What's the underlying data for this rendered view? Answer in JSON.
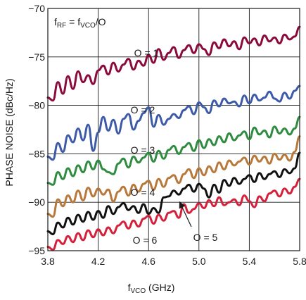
{
  "chart_data": {
    "type": "line",
    "title": "",
    "xlabel": {
      "main": "f",
      "sub": "VCO",
      "tail": " (GHz)"
    },
    "ylabel": "PHASE NOISE (dBc/Hz)",
    "xlim": [
      3.8,
      5.8
    ],
    "ylim": [
      -95,
      -70
    ],
    "x_ticks": [
      "3.8",
      "4.2",
      "4.6",
      "5.0",
      "5.4",
      "5.8"
    ],
    "y_ticks": [
      "−95",
      "−90",
      "−85",
      "−80",
      "−75",
      "−70"
    ],
    "x_tick_values": [
      3.8,
      4.2,
      4.6,
      5.0,
      5.4,
      5.8
    ],
    "y_tick_values": [
      -95,
      -90,
      -85,
      -80,
      -75,
      -70
    ],
    "grid": true,
    "formula": {
      "p1": "f",
      "s1": "RF",
      "p2": " = f",
      "s2": "VCO",
      "p3": "/O"
    },
    "series": [
      {
        "name": "O = 1",
        "label": "O = 1",
        "color": "#8b0a3c",
        "x": [
          3.8,
          3.84,
          3.88,
          3.92,
          3.96,
          4.0,
          4.04,
          4.08,
          4.12,
          4.16,
          4.2,
          4.24,
          4.28,
          4.32,
          4.36,
          4.4,
          4.44,
          4.48,
          4.52,
          4.56,
          4.6,
          4.64,
          4.68,
          4.72,
          4.76,
          4.8,
          4.84,
          4.88,
          4.92,
          4.96,
          5.0,
          5.04,
          5.08,
          5.12,
          5.16,
          5.2,
          5.24,
          5.28,
          5.32,
          5.36,
          5.4,
          5.44,
          5.48,
          5.52,
          5.56,
          5.6,
          5.64,
          5.68,
          5.72,
          5.76,
          5.8
        ],
        "y": [
          -79.2,
          -79.5,
          -77.6,
          -78.8,
          -77.0,
          -78.3,
          -76.5,
          -77.6,
          -76.9,
          -77.8,
          -76.4,
          -75.9,
          -76.8,
          -75.6,
          -76.5,
          -75.8,
          -75.2,
          -76.3,
          -75.4,
          -75.9,
          -74.8,
          -75.6,
          -74.2,
          -75.3,
          -74.6,
          -74.0,
          -75.1,
          -74.3,
          -73.8,
          -74.6,
          -73.7,
          -74.2,
          -74.8,
          -73.5,
          -74.1,
          -73.2,
          -73.9,
          -73.4,
          -74.2,
          -73.0,
          -73.6,
          -73.1,
          -73.8,
          -72.8,
          -73.4,
          -73.0,
          -73.6,
          -72.7,
          -73.2,
          -72.9,
          -71.9
        ]
      },
      {
        "name": "O = 2",
        "label": "O = 2",
        "color": "#3d5aa8",
        "x": [
          3.8,
          3.84,
          3.88,
          3.92,
          3.96,
          4.0,
          4.04,
          4.08,
          4.12,
          4.16,
          4.2,
          4.24,
          4.28,
          4.32,
          4.36,
          4.4,
          4.44,
          4.48,
          4.52,
          4.56,
          4.6,
          4.64,
          4.68,
          4.72,
          4.76,
          4.8,
          4.84,
          4.88,
          4.92,
          4.96,
          5.0,
          5.04,
          5.08,
          5.12,
          5.16,
          5.2,
          5.24,
          5.28,
          5.32,
          5.36,
          5.4,
          5.44,
          5.48,
          5.52,
          5.56,
          5.6,
          5.64,
          5.68,
          5.72,
          5.76,
          5.8
        ],
        "y": [
          -85.3,
          -85.6,
          -83.9,
          -84.8,
          -83.1,
          -83.8,
          -82.4,
          -83.6,
          -82.0,
          -84.7,
          -82.8,
          -81.2,
          -82.6,
          -81.5,
          -82.9,
          -81.4,
          -80.9,
          -82.5,
          -81.6,
          -80.8,
          -80.2,
          -82.2,
          -81.0,
          -82.0,
          -81.4,
          -80.9,
          -81.3,
          -80.5,
          -80.1,
          -80.9,
          -79.7,
          -80.2,
          -80.8,
          -79.5,
          -80.1,
          -79.3,
          -79.8,
          -79.6,
          -80.1,
          -79.0,
          -79.8,
          -78.9,
          -79.5,
          -79.2,
          -78.6,
          -79.3,
          -79.6,
          -78.7,
          -79.3,
          -78.5,
          -78.0
        ]
      },
      {
        "name": "O = 3",
        "label": "O = 3",
        "color": "#2e8b3f",
        "x": [
          3.8,
          3.84,
          3.88,
          3.92,
          3.96,
          4.0,
          4.04,
          4.08,
          4.12,
          4.16,
          4.2,
          4.24,
          4.28,
          4.32,
          4.36,
          4.4,
          4.44,
          4.48,
          4.52,
          4.56,
          4.6,
          4.64,
          4.68,
          4.72,
          4.76,
          4.8,
          4.84,
          4.88,
          4.92,
          4.96,
          5.0,
          5.04,
          5.08,
          5.12,
          5.16,
          5.2,
          5.24,
          5.28,
          5.32,
          5.36,
          5.4,
          5.44,
          5.48,
          5.52,
          5.56,
          5.6,
          5.64,
          5.68,
          5.72,
          5.76,
          5.8
        ],
        "y": [
          -88.0,
          -88.2,
          -86.9,
          -87.6,
          -86.5,
          -87.3,
          -86.2,
          -86.9,
          -85.8,
          -86.6,
          -85.7,
          -86.6,
          -86.9,
          -87.1,
          -86.0,
          -85.5,
          -86.4,
          -85.3,
          -85.9,
          -85.4,
          -84.9,
          -85.8,
          -84.7,
          -85.5,
          -84.6,
          -84.2,
          -85.0,
          -84.3,
          -83.9,
          -84.7,
          -83.6,
          -84.4,
          -83.5,
          -84.1,
          -83.2,
          -83.8,
          -82.9,
          -83.6,
          -83.1,
          -82.7,
          -83.5,
          -82.3,
          -83.0,
          -82.6,
          -83.3,
          -82.2,
          -82.9,
          -82.4,
          -83.0,
          -82.4,
          -81.2
        ]
      },
      {
        "name": "O = 4",
        "label": "O = 4",
        "color": "#b8783a",
        "x": [
          3.8,
          3.84,
          3.88,
          3.92,
          3.96,
          4.0,
          4.04,
          4.08,
          4.12,
          4.16,
          4.2,
          4.24,
          4.28,
          4.32,
          4.36,
          4.4,
          4.44,
          4.48,
          4.52,
          4.56,
          4.6,
          4.64,
          4.68,
          4.72,
          4.76,
          4.8,
          4.84,
          4.88,
          4.92,
          4.96,
          5.0,
          5.04,
          5.08,
          5.12,
          5.16,
          5.2,
          5.24,
          5.28,
          5.32,
          5.36,
          5.4,
          5.44,
          5.48,
          5.52,
          5.56,
          5.6,
          5.64,
          5.68,
          5.72,
          5.76,
          5.8
        ],
        "y": [
          -91.2,
          -91.5,
          -89.7,
          -90.4,
          -89.3,
          -90.0,
          -88.8,
          -89.8,
          -88.5,
          -89.4,
          -88.6,
          -89.2,
          -88.7,
          -89.9,
          -88.9,
          -88.4,
          -89.3,
          -88.2,
          -88.9,
          -88.1,
          -87.8,
          -88.7,
          -87.6,
          -88.4,
          -87.5,
          -87.2,
          -88.0,
          -87.1,
          -86.6,
          -87.5,
          -86.5,
          -87.2,
          -86.3,
          -86.9,
          -85.9,
          -86.6,
          -85.7,
          -86.2,
          -85.8,
          -85.4,
          -86.1,
          -85.2,
          -85.8,
          -85.3,
          -86.0,
          -85.0,
          -85.6,
          -85.1,
          -85.7,
          -84.8,
          -83.2
        ]
      },
      {
        "name": "O = 5",
        "label": "O = 5",
        "color": "#111111",
        "x": [
          3.8,
          3.84,
          3.88,
          3.92,
          3.96,
          4.0,
          4.04,
          4.08,
          4.12,
          4.16,
          4.2,
          4.24,
          4.28,
          4.32,
          4.36,
          4.4,
          4.44,
          4.48,
          4.52,
          4.56,
          4.6,
          4.64,
          4.68,
          4.72,
          4.76,
          4.8,
          4.84,
          4.88,
          4.92,
          4.96,
          5.0,
          5.04,
          5.08,
          5.12,
          5.16,
          5.2,
          5.24,
          5.28,
          5.32,
          5.36,
          5.4,
          5.44,
          5.48,
          5.52,
          5.56,
          5.6,
          5.64,
          5.68,
          5.72,
          5.76,
          5.8
        ],
        "y": [
          -93.0,
          -93.3,
          -92.1,
          -92.6,
          -91.6,
          -92.3,
          -91.3,
          -92.0,
          -91.0,
          -91.8,
          -90.9,
          -91.6,
          -90.4,
          -91.2,
          -90.5,
          -90.1,
          -90.8,
          -90.4,
          -91.1,
          -90.2,
          -91.2,
          -90.6,
          -91.1,
          -89.5,
          -89.4,
          -88.8,
          -89.2,
          -88.6,
          -88.2,
          -88.9,
          -88.1,
          -88.6,
          -89.5,
          -88.2,
          -89.0,
          -87.7,
          -88.3,
          -87.5,
          -88.1,
          -87.6,
          -87.2,
          -87.9,
          -87.0,
          -87.6,
          -87.1,
          -86.8,
          -87.4,
          -86.6,
          -87.0,
          -86.5,
          -84.9
        ]
      },
      {
        "name": "O = 6",
        "label": "O = 6",
        "color": "#d4203a",
        "x": [
          3.8,
          3.84,
          3.88,
          3.92,
          3.96,
          4.0,
          4.04,
          4.08,
          4.12,
          4.16,
          4.2,
          4.24,
          4.28,
          4.32,
          4.36,
          4.4,
          4.44,
          4.48,
          4.52,
          4.56,
          4.6,
          4.64,
          4.68,
          4.72,
          4.76,
          4.8,
          4.84,
          4.88,
          4.92,
          4.96,
          5.0,
          5.04,
          5.08,
          5.12,
          5.16,
          5.2,
          5.24,
          5.28,
          5.32,
          5.36,
          5.4,
          5.44,
          5.48,
          5.52,
          5.56,
          5.6,
          5.64,
          5.68,
          5.72,
          5.76,
          5.8
        ],
        "y": [
          -94.6,
          -94.9,
          -93.9,
          -94.3,
          -93.5,
          -94.1,
          -93.2,
          -93.9,
          -92.9,
          -93.6,
          -92.8,
          -93.4,
          -92.6,
          -93.2,
          -92.4,
          -92.0,
          -92.7,
          -91.9,
          -92.5,
          -91.7,
          -91.4,
          -92.2,
          -91.3,
          -91.9,
          -91.1,
          -90.9,
          -91.6,
          -90.2,
          -91.1,
          -90.7,
          -90.1,
          -90.6,
          -89.8,
          -90.4,
          -89.5,
          -90.3,
          -90.0,
          -89.7,
          -90.3,
          -89.3,
          -89.9,
          -90.5,
          -89.4,
          -89.9,
          -89.1,
          -88.8,
          -89.4,
          -88.6,
          -89.1,
          -88.4,
          -87.6
        ]
      }
    ]
  }
}
